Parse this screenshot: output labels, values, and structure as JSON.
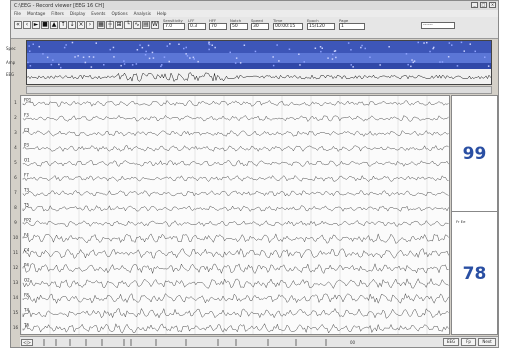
{
  "window": {
    "title": "C:\\EEG - Record viewer  [EEG 16 CH]",
    "controls": [
      "_",
      "□",
      "×"
    ]
  },
  "menu": [
    "File",
    "Montage",
    "Filters",
    "Display",
    "Events",
    "Options",
    "Analysis",
    "Help"
  ],
  "toolbar": {
    "buttons": [
      {
        "name": "first-page-button",
        "glyph": "«"
      },
      {
        "name": "prev-page-button",
        "glyph": "‹"
      },
      {
        "name": "play-button",
        "glyph": "►"
      },
      {
        "name": "stop-button",
        "glyph": "■"
      },
      {
        "name": "mark-button",
        "glyph": "▲"
      },
      {
        "name": "up-button",
        "glyph": "↑"
      },
      {
        "name": "down-button",
        "glyph": "↓"
      },
      {
        "name": "close-button",
        "glyph": "×"
      },
      {
        "name": "next-page-button",
        "glyph": "›"
      },
      {
        "name": "montage-button",
        "glyph": "▦"
      },
      {
        "name": "measure-button",
        "glyph": "┼"
      },
      {
        "name": "zoom-button",
        "glyph": "⊞"
      },
      {
        "name": "cursor-button",
        "glyph": "└"
      },
      {
        "name": "filter-button",
        "glyph": "∿"
      },
      {
        "name": "print-button",
        "glyph": "▤"
      },
      {
        "name": "wave-button",
        "glyph": "W"
      }
    ],
    "fields": [
      {
        "label": "Sensitivity",
        "value": "7.0"
      },
      {
        "label": "LFF",
        "value": "0.3"
      },
      {
        "label": "HFF",
        "value": "70"
      },
      {
        "label": "Notch",
        "value": "50"
      },
      {
        "label": "Speed",
        "value": "30"
      },
      {
        "label": "Time",
        "value": "00:00:15"
      },
      {
        "label": "Epoch",
        "value": "15/120"
      },
      {
        "label": "Page",
        "value": "1"
      }
    ],
    "extra_field": "------"
  },
  "overview": {
    "labels": [
      "Spec",
      "Amp",
      "EEG"
    ]
  },
  "channels": [
    "1",
    "2",
    "3",
    "4",
    "5",
    "6",
    "7",
    "8",
    "9",
    "10",
    "11",
    "12",
    "13",
    "14",
    "15",
    "16"
  ],
  "channel_names": [
    "FP1",
    "F3",
    "C3",
    "P3",
    "O1",
    "F7",
    "T3",
    "T5",
    "FP2",
    "F4",
    "C4",
    "P4",
    "O2",
    "F8",
    "T4",
    "T6"
  ],
  "right_panel": {
    "top_value": "99",
    "bottom_value": "78",
    "legend": "Fr     Ee"
  },
  "statusbar": {
    "left_btn": "<|>",
    "position": "00",
    "buttons": [
      "EEG",
      "Fp",
      "Next"
    ]
  },
  "colors": {
    "overview_bg": "#1a2c7a",
    "number_color": "#2a4fa3"
  }
}
